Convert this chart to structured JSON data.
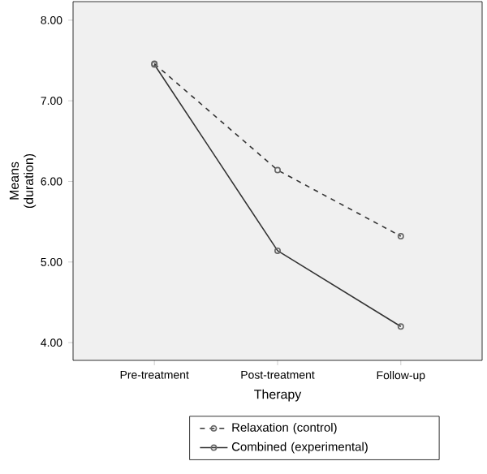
{
  "chart_data": {
    "type": "line",
    "xlabel": "Therapy",
    "ylabel": "Means (duration)",
    "categories": [
      "Pre-treatment",
      "Post-treatment",
      "Follow-up"
    ],
    "series": [
      {
        "name": "Relaxation (control)",
        "color": "#333333",
        "line_style": "dashed",
        "values": [
          7.46,
          6.14,
          5.32
        ]
      },
      {
        "name": "Combined (experimental)",
        "color": "#333333",
        "line_style": "solid",
        "values": [
          7.45,
          5.14,
          4.2
        ]
      }
    ],
    "ylim": [
      3.78,
      8.23
    ],
    "yticks": [
      {
        "value": 4,
        "label": "4.00"
      },
      {
        "value": 5,
        "label": "5.00"
      },
      {
        "value": 6,
        "label": "6.00"
      },
      {
        "value": 7,
        "label": "7.00"
      },
      {
        "value": 8,
        "label": "8.00"
      }
    ],
    "grid": false,
    "legend": "bottom",
    "marker": "circle"
  }
}
